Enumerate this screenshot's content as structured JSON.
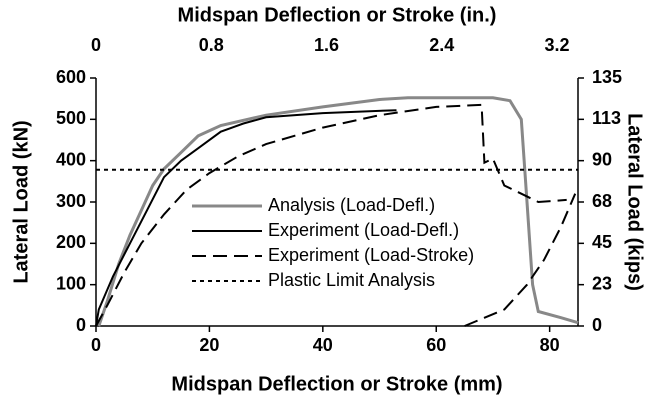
{
  "chart_data": {
    "type": "line",
    "xlabel": "Midspan Deflection or Stroke (mm)",
    "x2label": "Midspan Deflection or Stroke (in.)",
    "ylabel": "Lateral Load (kN)",
    "y2label": "Lateral Load (kips)",
    "xlim": [
      0,
      85
    ],
    "xticks": [
      0,
      20,
      40,
      60,
      80
    ],
    "x2lim": [
      0,
      3.346
    ],
    "x2ticks": [
      0,
      0.8,
      1.6,
      2.4,
      3.2
    ],
    "ylim": [
      0,
      600
    ],
    "yticks": [
      0,
      100,
      200,
      300,
      400,
      500,
      600
    ],
    "y2lim": [
      0,
      135
    ],
    "y2ticks": [
      0,
      {
        "value": 22.5,
        "label": "23"
      },
      45,
      {
        "value": 67.5,
        "label": "68"
      },
      90,
      {
        "value": 112.5,
        "label": "113"
      },
      135
    ],
    "series": [
      {
        "name": "Analysis (Load-Defl.)",
        "color": "#888888",
        "dash": "solid",
        "x": [
          0.5,
          2,
          4,
          6,
          8,
          10,
          12,
          15,
          18,
          22,
          30,
          40,
          50,
          55,
          70,
          73,
          75,
          76,
          77,
          78,
          82,
          85
        ],
        "values": [
          0,
          60,
          150,
          220,
          280,
          340,
          380,
          420,
          460,
          485,
          510,
          530,
          548,
          552,
          552,
          545,
          500,
          300,
          100,
          35,
          20,
          8
        ]
      },
      {
        "name": "Experiment (Load-Defl.)",
        "color": "#000000",
        "dash": "solid",
        "x": [
          0,
          0.5,
          3,
          6,
          9,
          12,
          15,
          18,
          22,
          26,
          30,
          40,
          53
        ],
        "values": [
          0,
          40,
          120,
          200,
          280,
          360,
          400,
          430,
          470,
          490,
          505,
          515,
          522
        ]
      },
      {
        "name": "Experiment (Load-Stroke)",
        "color": "#000000",
        "dash": "dashed",
        "x": [
          0,
          2,
          5,
          8,
          12,
          16,
          20,
          25,
          30,
          40,
          50,
          60,
          68,
          68.5,
          70,
          72,
          75,
          78,
          83,
          85,
          65,
          72,
          76,
          79,
          82,
          84.5
        ],
        "values": [
          0,
          50,
          130,
          200,
          270,
          330,
          370,
          410,
          440,
          480,
          510,
          530,
          535,
          395,
          405,
          340,
          320,
          300,
          305,
          null,
          0,
          40,
          100,
          160,
          240,
          320
        ]
      },
      {
        "name": "Plastic Limit Analysis",
        "color": "#000000",
        "dash": "dotted",
        "x": [
          0,
          85
        ],
        "values": [
          378,
          378
        ]
      }
    ]
  }
}
